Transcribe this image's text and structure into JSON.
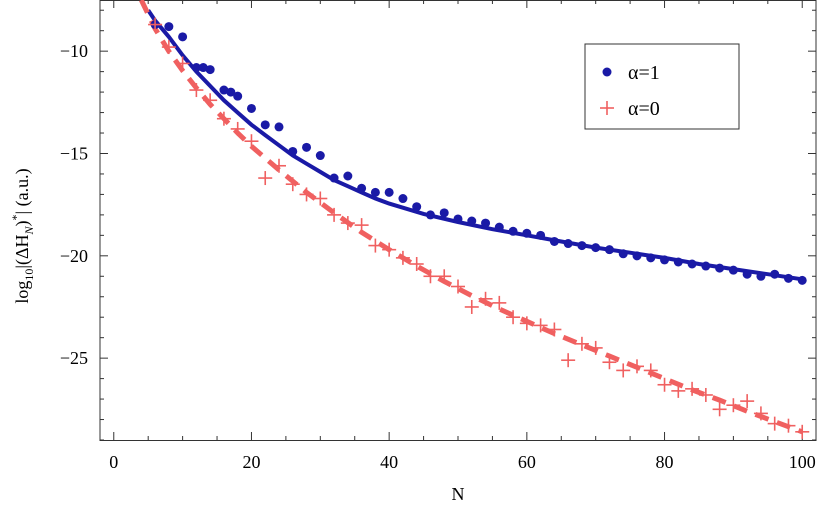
{
  "chart_data": {
    "type": "scatter",
    "xlabel": "N",
    "ylabel": "log10|(ΔHN)*| (a.u.)",
    "xlim": [
      -2,
      102
    ],
    "ylim": [
      -29,
      -7.5
    ],
    "xticks": [
      0,
      20,
      40,
      60,
      80,
      100
    ],
    "yticks": [
      -10,
      -15,
      -20,
      -25
    ],
    "legend_position": "top-right",
    "series": [
      {
        "name": "α=1",
        "marker": "dot",
        "color": "#1a1aa6",
        "points": [
          [
            6,
            -8.7
          ],
          [
            8,
            -8.8
          ],
          [
            10,
            -9.3
          ],
          [
            12,
            -10.8
          ],
          [
            13,
            -10.8
          ],
          [
            14,
            -10.9
          ],
          [
            16,
            -11.9
          ],
          [
            17,
            -12.0
          ],
          [
            18,
            -12.2
          ],
          [
            20,
            -12.8
          ],
          [
            22,
            -13.6
          ],
          [
            24,
            -13.7
          ],
          [
            26,
            -14.9
          ],
          [
            28,
            -14.7
          ],
          [
            30,
            -15.1
          ],
          [
            32,
            -16.2
          ],
          [
            34,
            -16.1
          ],
          [
            36,
            -16.7
          ],
          [
            38,
            -16.9
          ],
          [
            40,
            -16.9
          ],
          [
            42,
            -17.2
          ],
          [
            44,
            -17.6
          ],
          [
            46,
            -18.0
          ],
          [
            48,
            -17.9
          ],
          [
            50,
            -18.2
          ],
          [
            52,
            -18.3
          ],
          [
            54,
            -18.4
          ],
          [
            56,
            -18.6
          ],
          [
            58,
            -18.8
          ],
          [
            60,
            -18.9
          ],
          [
            62,
            -19.0
          ],
          [
            64,
            -19.3
          ],
          [
            66,
            -19.4
          ],
          [
            68,
            -19.5
          ],
          [
            70,
            -19.6
          ],
          [
            72,
            -19.7
          ],
          [
            74,
            -19.9
          ],
          [
            76,
            -20.0
          ],
          [
            78,
            -20.1
          ],
          [
            80,
            -20.2
          ],
          [
            82,
            -20.3
          ],
          [
            84,
            -20.4
          ],
          [
            86,
            -20.5
          ],
          [
            88,
            -20.6
          ],
          [
            90,
            -20.7
          ],
          [
            92,
            -20.9
          ],
          [
            94,
            -21.0
          ],
          [
            96,
            -20.9
          ],
          [
            98,
            -21.1
          ],
          [
            100,
            -21.2
          ]
        ],
        "fit": [
          [
            5,
            -8.0
          ],
          [
            6,
            -8.5
          ],
          [
            8,
            -9.3
          ],
          [
            10,
            -10.2
          ],
          [
            12,
            -11.0
          ],
          [
            14,
            -11.7
          ],
          [
            16,
            -12.4
          ],
          [
            18,
            -13.0
          ],
          [
            20,
            -13.6
          ],
          [
            22,
            -14.1
          ],
          [
            24,
            -14.6
          ],
          [
            26,
            -15.1
          ],
          [
            28,
            -15.5
          ],
          [
            30,
            -15.9
          ],
          [
            32,
            -16.3
          ],
          [
            34,
            -16.6
          ],
          [
            36,
            -16.9
          ],
          [
            38,
            -17.2
          ],
          [
            40,
            -17.45
          ],
          [
            45,
            -17.95
          ],
          [
            50,
            -18.35
          ],
          [
            55,
            -18.7
          ],
          [
            60,
            -19.0
          ],
          [
            65,
            -19.3
          ],
          [
            70,
            -19.6
          ],
          [
            75,
            -19.85
          ],
          [
            80,
            -20.1
          ],
          [
            85,
            -20.4
          ],
          [
            90,
            -20.65
          ],
          [
            95,
            -20.9
          ],
          [
            100,
            -21.15
          ]
        ]
      },
      {
        "name": "α=0",
        "marker": "plus",
        "color": "#f06060",
        "points": [
          [
            6,
            -8.7
          ],
          [
            8,
            -9.8
          ],
          [
            10,
            -10.6
          ],
          [
            12,
            -11.9
          ],
          [
            14,
            -12.4
          ],
          [
            16,
            -13.3
          ],
          [
            18,
            -13.8
          ],
          [
            20,
            -14.4
          ],
          [
            22,
            -16.2
          ],
          [
            24,
            -15.6
          ],
          [
            26,
            -16.5
          ],
          [
            28,
            -17.0
          ],
          [
            30,
            -17.2
          ],
          [
            32,
            -18.0
          ],
          [
            34,
            -18.4
          ],
          [
            36,
            -18.5
          ],
          [
            38,
            -19.5
          ],
          [
            40,
            -19.7
          ],
          [
            42,
            -20.1
          ],
          [
            44,
            -20.4
          ],
          [
            46,
            -21.0
          ],
          [
            48,
            -21.0
          ],
          [
            50,
            -21.5
          ],
          [
            52,
            -22.5
          ],
          [
            54,
            -22.1
          ],
          [
            56,
            -22.3
          ],
          [
            58,
            -23.0
          ],
          [
            60,
            -23.3
          ],
          [
            62,
            -23.4
          ],
          [
            64,
            -23.6
          ],
          [
            66,
            -25.1
          ],
          [
            68,
            -24.3
          ],
          [
            70,
            -24.5
          ],
          [
            72,
            -25.2
          ],
          [
            74,
            -25.6
          ],
          [
            76,
            -25.4
          ],
          [
            78,
            -25.6
          ],
          [
            80,
            -26.3
          ],
          [
            82,
            -26.6
          ],
          [
            84,
            -26.5
          ],
          [
            86,
            -26.8
          ],
          [
            88,
            -27.5
          ],
          [
            90,
            -27.3
          ],
          [
            92,
            -27.1
          ],
          [
            94,
            -27.7
          ],
          [
            96,
            -28.2
          ],
          [
            98,
            -28.3
          ],
          [
            100,
            -28.6
          ]
        ],
        "fit": [
          [
            4,
            -7.5
          ],
          [
            6,
            -8.9
          ],
          [
            8,
            -10.0
          ],
          [
            10,
            -10.95
          ],
          [
            12,
            -11.8
          ],
          [
            14,
            -12.6
          ],
          [
            16,
            -13.3
          ],
          [
            18,
            -14.0
          ],
          [
            20,
            -14.65
          ],
          [
            24,
            -15.8
          ],
          [
            28,
            -16.9
          ],
          [
            32,
            -17.9
          ],
          [
            36,
            -18.85
          ],
          [
            40,
            -19.7
          ],
          [
            44,
            -20.5
          ],
          [
            48,
            -21.25
          ],
          [
            52,
            -21.95
          ],
          [
            56,
            -22.6
          ],
          [
            60,
            -23.2
          ],
          [
            64,
            -23.8
          ],
          [
            68,
            -24.35
          ],
          [
            72,
            -24.9
          ],
          [
            76,
            -25.45
          ],
          [
            80,
            -26.0
          ],
          [
            84,
            -26.55
          ],
          [
            88,
            -27.05
          ],
          [
            92,
            -27.6
          ],
          [
            96,
            -28.1
          ],
          [
            100,
            -28.6
          ]
        ]
      }
    ]
  }
}
